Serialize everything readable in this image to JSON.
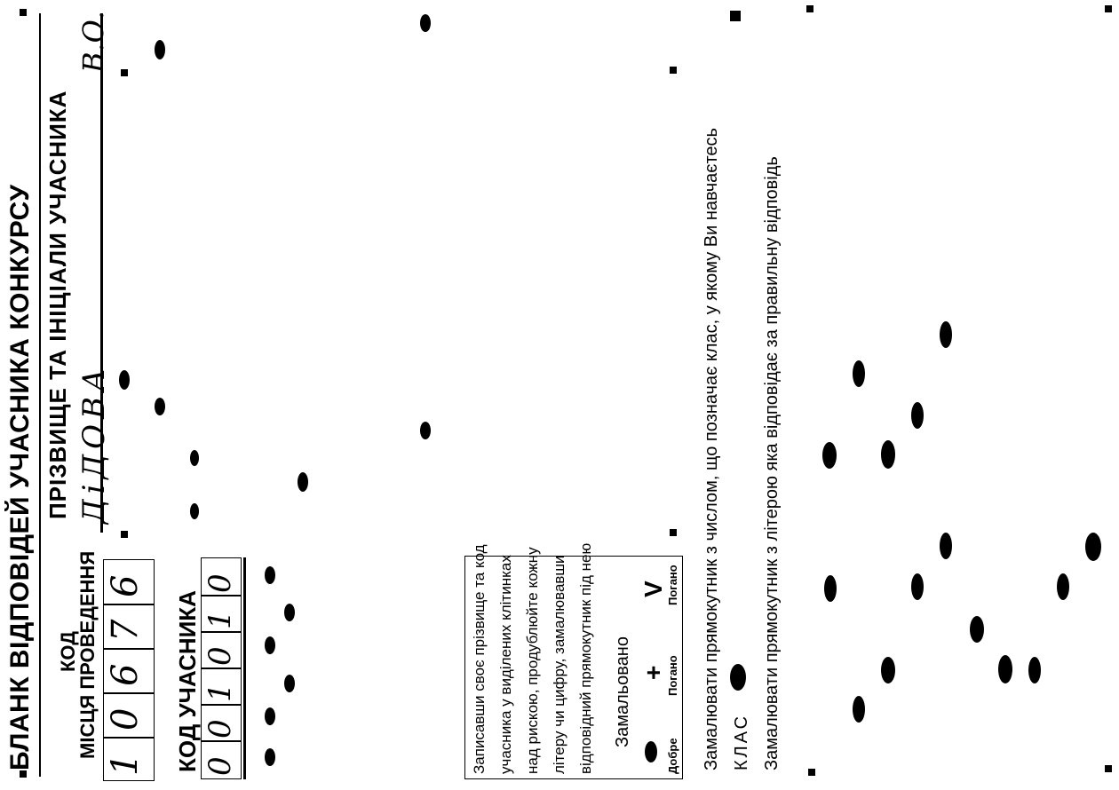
{
  "form": {
    "title": "БЛАНК ВІДПОВІДЕЙ УЧАСНИКА КОНКУРСУ",
    "surname_label": "ПРІЗВИЩЕ ТА ІНІЦІАЛИ УЧАСНИКА",
    "surname_value": "ДіДОВА",
    "initials_value": "В.О.",
    "venue_code_label_top": "КОД",
    "venue_code_label_bottom": "МІСЦЯ ПРОВЕДЕННЯ",
    "venue_code_digits": [
      "1",
      "0",
      "6",
      "7",
      "6"
    ],
    "participant_code_label": "КОД УЧАСНИКА",
    "participant_code_digits": [
      "0",
      "0",
      "1",
      "0",
      "1",
      "0"
    ]
  },
  "instructions": {
    "lines": [
      "Записавши своє прізвище та код",
      "учасника у виділених клітинках",
      "над рискою, продублюйте кожну",
      "літеру чи цифру, замалювавши",
      "відповідний прямокутник під нею"
    ],
    "shaded_label": "Замальовано",
    "good_label": "Добре",
    "bad_label_1": "Погано",
    "bad_label_2": "Погано",
    "bad_symbol_1": "+",
    "bad_symbol_2": "V"
  },
  "class_section": {
    "instruction": "Замалювати прямокутник з числом, що позначає клас, у якому Ви навчаєтесь",
    "label": "КЛАС"
  },
  "answers_section": {
    "instruction": "Замалювати прямокутник з літерою яка відповідає за правильну відповідь"
  }
}
